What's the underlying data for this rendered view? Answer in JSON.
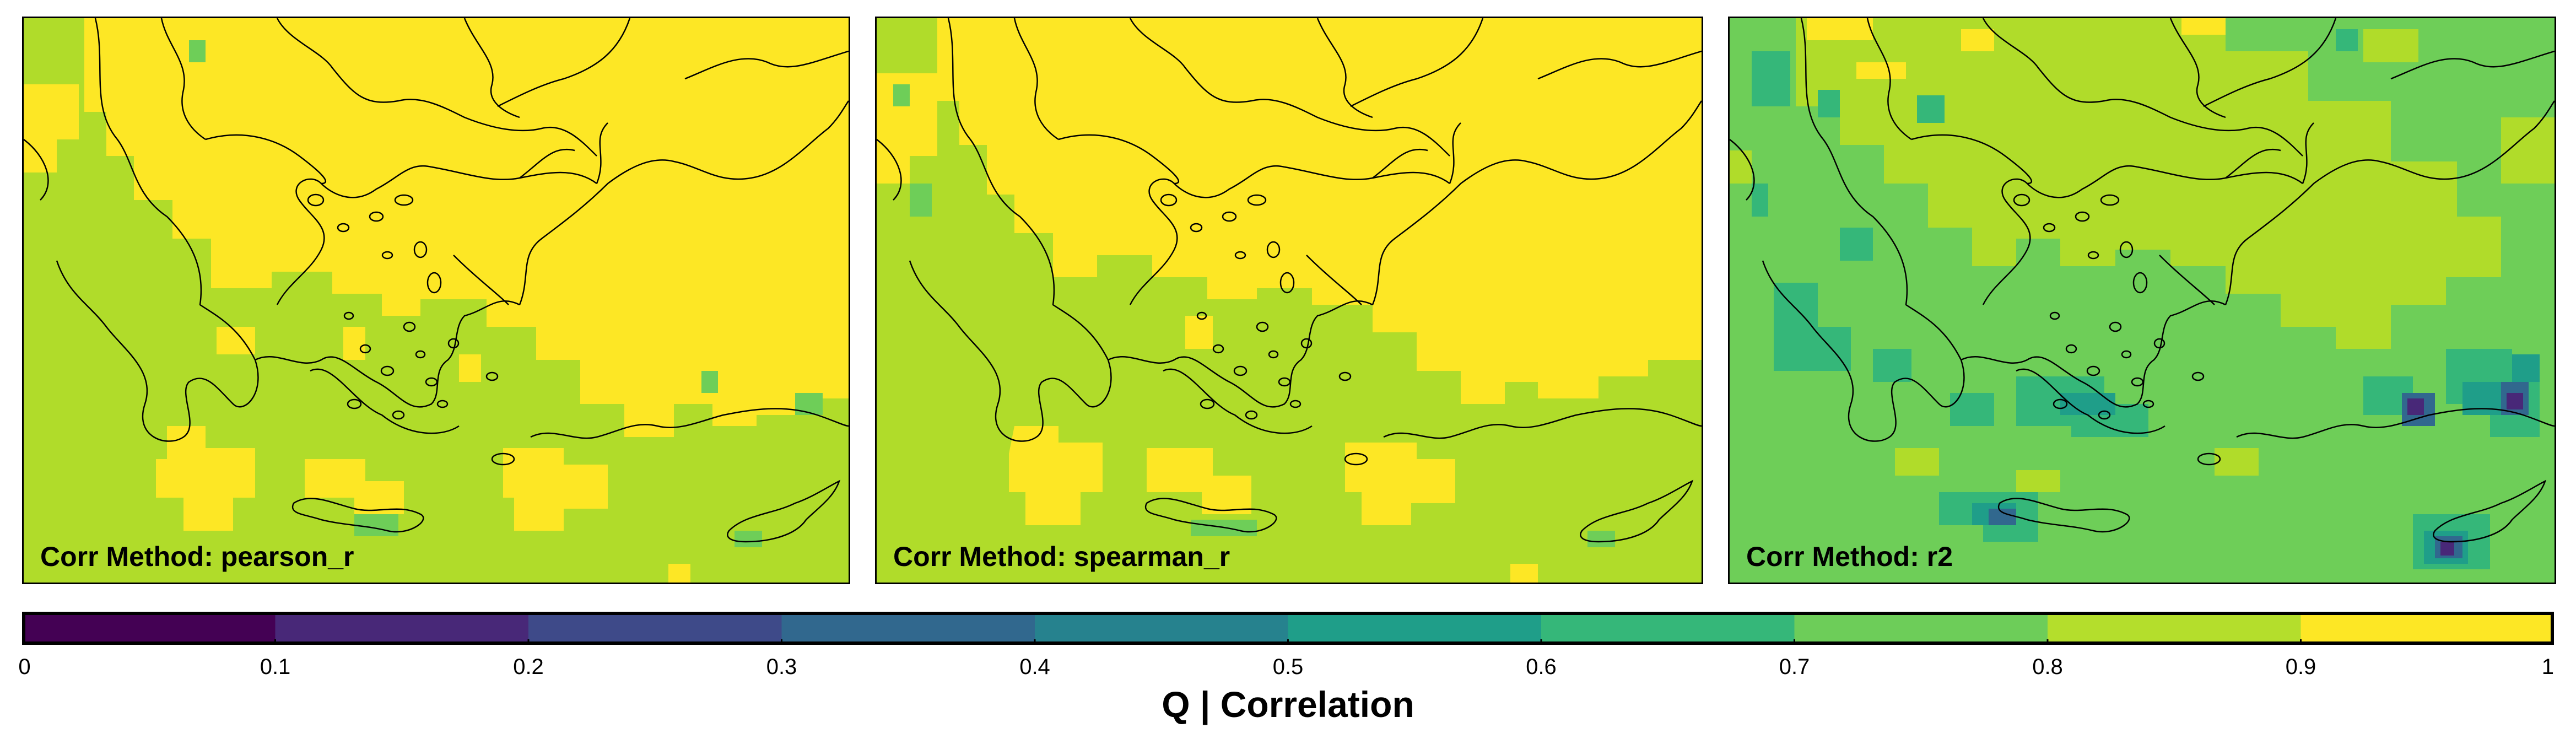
{
  "panels": [
    {
      "label": "Corr Method: pearson_r"
    },
    {
      "label": "Corr Method: spearman_r"
    },
    {
      "label": "Corr Method: r2"
    }
  ],
  "colorbar": {
    "title": "Q | Correlation",
    "ticks": [
      "0",
      "0.1",
      "0.2",
      "0.3",
      "0.4",
      "0.5",
      "0.6",
      "0.7",
      "0.8",
      "0.9",
      "1"
    ],
    "colors": [
      "#440154",
      "#482878",
      "#3E4A89",
      "#31688E",
      "#26828E",
      "#1F9E89",
      "#35B779",
      "#6DCD59",
      "#B4DE2C",
      "#FDE725"
    ]
  },
  "map_colors": {
    "yellow": "#FDE725",
    "light_green": "#B0DC2A",
    "green": "#6ECE58",
    "teal": "#35B779",
    "blue_teal": "#1F9E89",
    "blue": "#31688E",
    "purple": "#482878"
  }
}
